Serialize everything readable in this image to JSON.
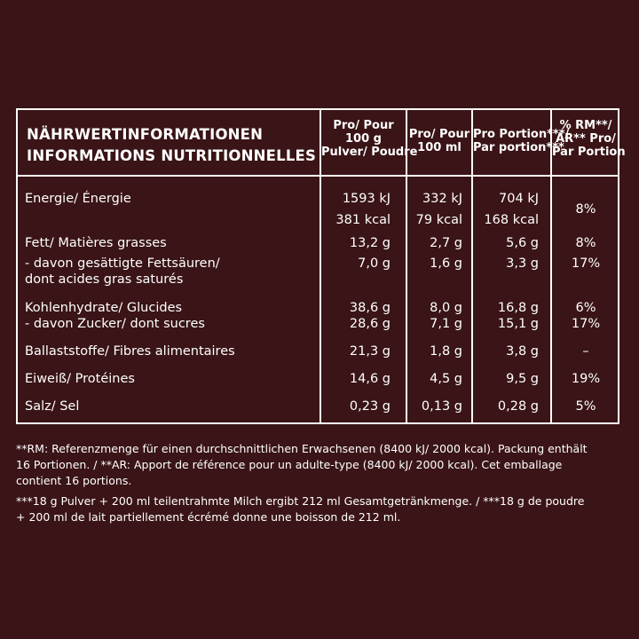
{
  "header": {
    "title_de": "NÄHRWERTINFORMATIONEN",
    "title_fr": "INFORMATIONS NUTRITIONNELLES",
    "col1": [
      "Pro/ Pour",
      "100 g",
      "Pulver/ Poudre"
    ],
    "col2": [
      "Pro/ Pour",
      "100 ml"
    ],
    "col3": [
      "Pro Portion***/",
      "Par portion***"
    ],
    "col4": [
      "% RM**/",
      "AR** Pro/",
      "Par Portion"
    ]
  },
  "rows": {
    "energy": {
      "label": "Energie/ Énergie",
      "v1a": "1593 kJ",
      "v1b": "381 kcal",
      "v2a": "332 kJ",
      "v2b": "79 kcal",
      "v3a": "704 kJ",
      "v3b": "168 kcal",
      "pct": "8%"
    },
    "fat": {
      "label": "Fett/ Matières grasses",
      "v1": "13,2 g",
      "v2": "2,7 g",
      "v3": "5,6 g",
      "pct": "8%"
    },
    "satfat": {
      "label1": "- davon gesättigte Fettsäuren/",
      "label2": "dont acides gras saturés",
      "v1": "7,0 g",
      "v2": "1,6 g",
      "v3": "3,3 g",
      "pct": "17%"
    },
    "carbs": {
      "label": "Kohlenhydrate/ Glucides",
      "v1": "38,6 g",
      "v2": "8,0 g",
      "v3": "16,8 g",
      "pct": "6%"
    },
    "sugar": {
      "label": "- davon Zucker/ dont sucres",
      "v1": "28,6 g",
      "v2": "7,1 g",
      "v3": "15,1 g",
      "pct": "17%"
    },
    "fibre": {
      "label": "Ballaststoffe/ Fibres alimentaires",
      "v1": "21,3 g",
      "v2": "1,8 g",
      "v3": "3,8 g",
      "pct": "–"
    },
    "protein": {
      "label": "Eiweiß/ Protéines",
      "v1": "14,6 g",
      "v2": "4,5 g",
      "v3": "9,5 g",
      "pct": "19%"
    },
    "salt": {
      "label": "Salz/ Sel",
      "v1": "0,23 g",
      "v2": "0,13 g",
      "v3": "0,28 g",
      "pct": "5%"
    }
  },
  "footnotes": [
    "**RM: Referenzmenge für einen durchschnittlichen Erwachsenen (8400 kJ/ 2000 kcal). Packung enthält",
    "16 Portionen. / **AR: Apport de référence pour un adulte-type (8400 kJ/ 2000 kcal). Cet emballage",
    "contient 16 portions.",
    "***18 g Pulver + 200 ml teilentrahmte Milch ergibt 212 ml Gesamtgetränkmenge. / ***18 g de poudre",
    "+ 200 ml de lait partiellement écrémé donne une boisson de 212 ml."
  ],
  "colors": {
    "background": "#3a1416",
    "text": "#ffffff"
  }
}
